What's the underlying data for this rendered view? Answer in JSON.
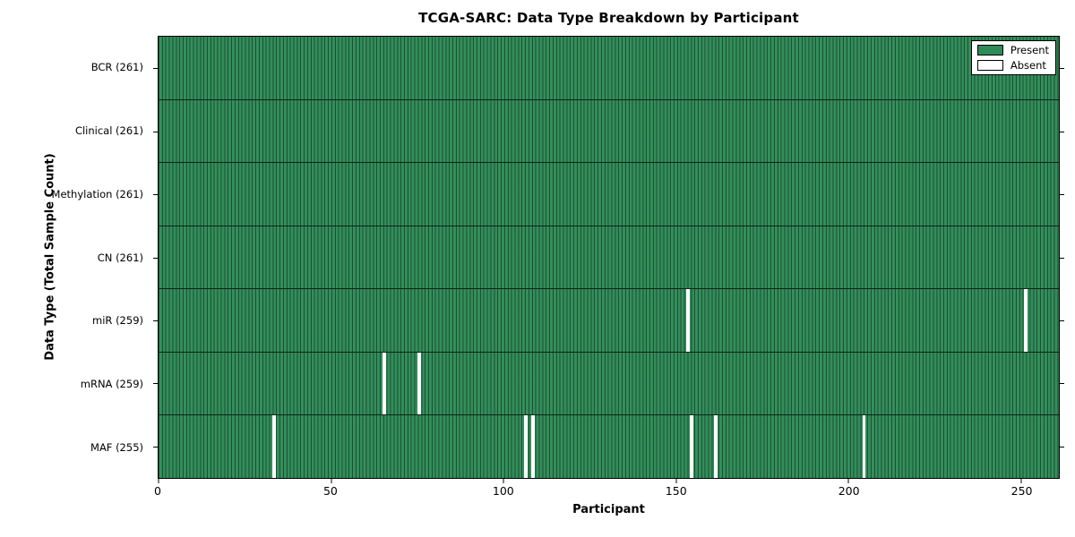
{
  "chart_data": {
    "type": "heatmap",
    "title": "TCGA-SARC: Data Type Breakdown by Participant",
    "xlabel": "Participant",
    "ylabel": "Data Type (Total Sample Count)",
    "xlim": [
      0,
      261
    ],
    "n_participants": 261,
    "x_ticks": [
      0,
      50,
      100,
      150,
      200,
      250
    ],
    "grid": false,
    "legend_position": "upper right",
    "legend": [
      {
        "label": "Present",
        "color": "#2e8b57"
      },
      {
        "label": "Absent",
        "color": "#ffffff"
      }
    ],
    "colors": {
      "present": "#2e8b57",
      "absent": "#ffffff",
      "bar_edge": "#000000",
      "frame": "#000000"
    },
    "rows": [
      {
        "label": "BCR (261)",
        "data_type": "BCR",
        "total": 261,
        "absent_participants": []
      },
      {
        "label": "Clinical (261)",
        "data_type": "Clinical",
        "total": 261,
        "absent_participants": []
      },
      {
        "label": "Methylation (261)",
        "data_type": "Methylation",
        "total": 261,
        "absent_participants": []
      },
      {
        "label": "CN (261)",
        "data_type": "CN",
        "total": 261,
        "absent_participants": []
      },
      {
        "label": "miR (259)",
        "data_type": "miR",
        "total": 259,
        "absent_participants": [
          153,
          251
        ]
      },
      {
        "label": "mRNA (259)",
        "data_type": "mRNA",
        "total": 259,
        "absent_participants": [
          65,
          75
        ]
      },
      {
        "label": "MAF (255)",
        "data_type": "MAF",
        "total": 255,
        "absent_participants": [
          33,
          106,
          108,
          154,
          161,
          204
        ]
      }
    ]
  }
}
